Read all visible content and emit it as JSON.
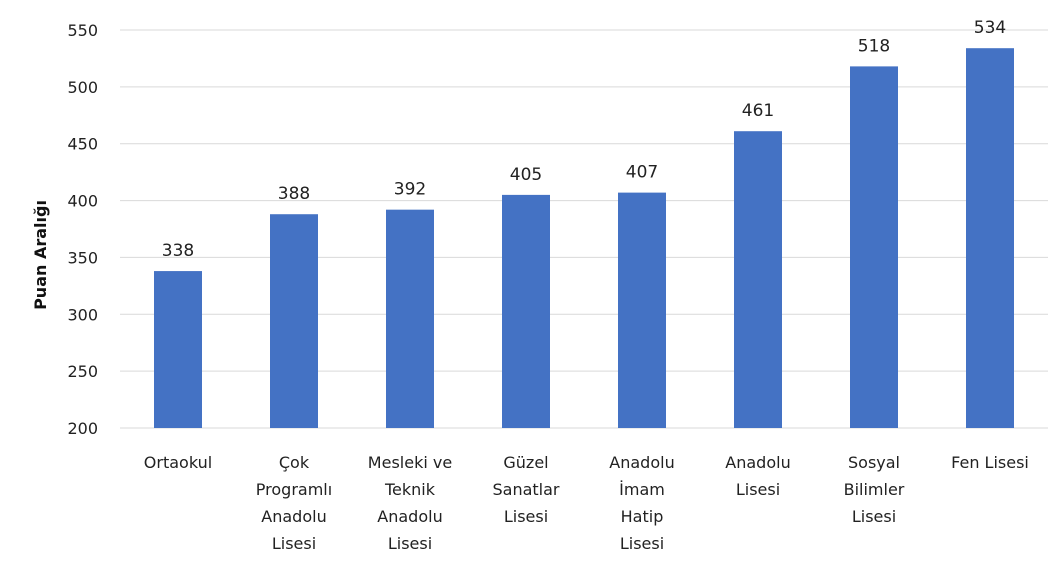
{
  "chart_data": {
    "type": "bar",
    "title": "",
    "xlabel": "",
    "ylabel": "Puan Aralığı",
    "ylim": [
      200,
      550
    ],
    "yticks": [
      200,
      250,
      300,
      350,
      400,
      450,
      500,
      550
    ],
    "grid": true,
    "legend": "none",
    "bar_color": "#4472C4",
    "categories": [
      [
        "Ortaokul"
      ],
      [
        "Çok",
        "Programlı",
        "Anadolu",
        "Lisesi"
      ],
      [
        "Mesleki ve",
        "Teknik",
        "Anadolu",
        "Lisesi"
      ],
      [
        "Güzel",
        "Sanatlar",
        "Lisesi"
      ],
      [
        "Anadolu",
        "İmam",
        "Hatip",
        "Lisesi"
      ],
      [
        "Anadolu",
        "Lisesi"
      ],
      [
        "Sosyal",
        "Bilimler",
        "Lisesi"
      ],
      [
        "Fen Lisesi"
      ]
    ],
    "values": [
      338,
      388,
      392,
      405,
      407,
      461,
      518,
      534
    ]
  }
}
